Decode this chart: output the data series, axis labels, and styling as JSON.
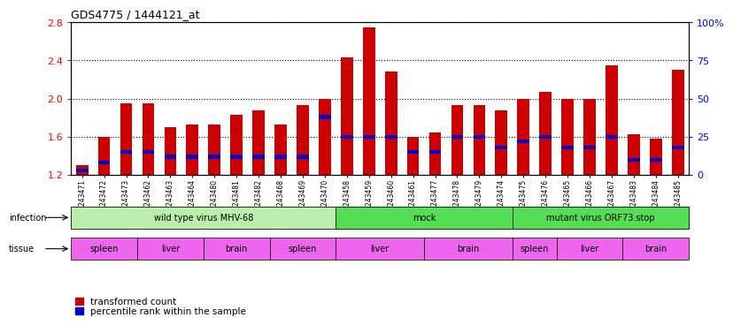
{
  "title": "GDS4775 / 1444121_at",
  "samples": [
    "GSM1243471",
    "GSM1243472",
    "GSM1243473",
    "GSM1243462",
    "GSM1243463",
    "GSM1243464",
    "GSM1243480",
    "GSM1243481",
    "GSM1243482",
    "GSM1243468",
    "GSM1243469",
    "GSM1243470",
    "GSM1243458",
    "GSM1243459",
    "GSM1243460",
    "GSM1243461",
    "GSM1243477",
    "GSM1243478",
    "GSM1243479",
    "GSM1243474",
    "GSM1243475",
    "GSM1243476",
    "GSM1243465",
    "GSM1243466",
    "GSM1243467",
    "GSM1243483",
    "GSM1243484",
    "GSM1243485"
  ],
  "red_values": [
    1.3,
    1.6,
    1.95,
    1.95,
    1.7,
    1.73,
    1.73,
    1.83,
    1.88,
    1.73,
    1.93,
    2.0,
    2.43,
    2.75,
    2.28,
    1.6,
    1.65,
    1.93,
    1.93,
    1.88,
    2.0,
    2.07,
    2.0,
    2.0,
    2.35,
    1.63,
    1.58,
    2.3
  ],
  "blue_percentiles": [
    3,
    8,
    15,
    15,
    12,
    12,
    12,
    12,
    12,
    12,
    12,
    38,
    25,
    25,
    25,
    15,
    15,
    25,
    25,
    18,
    22,
    25,
    18,
    18,
    25,
    10,
    10,
    18
  ],
  "ylim_left": [
    1.2,
    2.8
  ],
  "ylim_right": [
    0,
    100
  ],
  "y_ticks_left": [
    1.2,
    1.6,
    2.0,
    2.4,
    2.8
  ],
  "y_ticks_right": [
    0,
    25,
    50,
    75,
    100
  ],
  "y_tick_labels_right": [
    "0",
    "25",
    "50",
    "75",
    "100%"
  ],
  "baseline": 1.2,
  "infection_groups": [
    {
      "label": "wild type virus MHV-68",
      "start": 0,
      "end": 12,
      "color": "#aaddaa"
    },
    {
      "label": "mock",
      "start": 12,
      "end": 20,
      "color": "#55cc55"
    },
    {
      "label": "mutant virus ORF73.stop",
      "start": 20,
      "end": 28,
      "color": "#55cc55"
    }
  ],
  "tissue_groups": [
    {
      "label": "spleen",
      "start": 0,
      "end": 3
    },
    {
      "label": "liver",
      "start": 3,
      "end": 6
    },
    {
      "label": "brain",
      "start": 6,
      "end": 9
    },
    {
      "label": "spleen",
      "start": 9,
      "end": 12
    },
    {
      "label": "liver",
      "start": 12,
      "end": 16
    },
    {
      "label": "brain",
      "start": 16,
      "end": 20
    },
    {
      "label": "spleen",
      "start": 20,
      "end": 22
    },
    {
      "label": "liver",
      "start": 22,
      "end": 25
    },
    {
      "label": "brain",
      "start": 25,
      "end": 28
    }
  ],
  "tissue_color": "#ee66ee",
  "infection_light": "#bbeeaa",
  "infection_dark": "#55dd55",
  "red_color": "#cc0000",
  "blue_color": "#0000cc",
  "bar_width": 0.55,
  "infection_row_label": "infection",
  "tissue_row_label": "tissue",
  "legend_red": "transformed count",
  "legend_blue": "percentile rank within the sample"
}
